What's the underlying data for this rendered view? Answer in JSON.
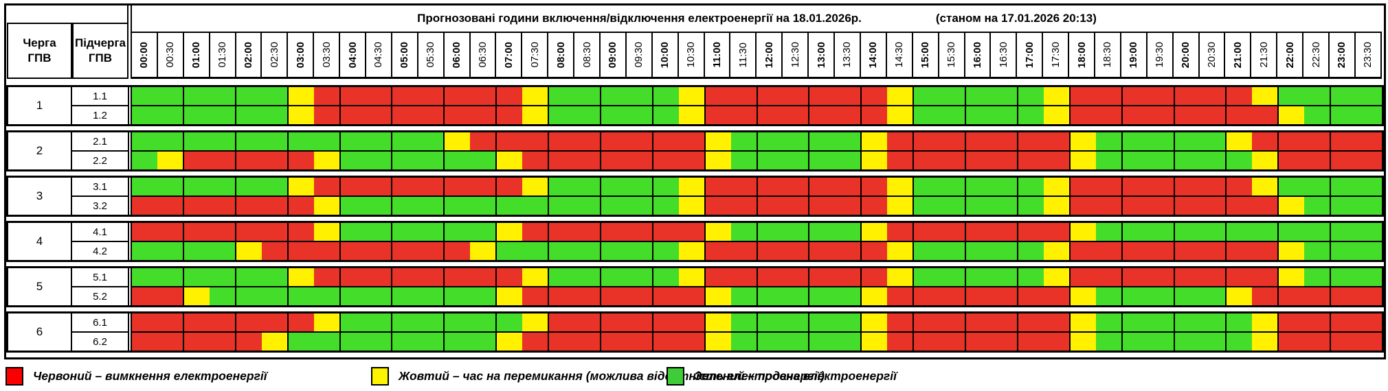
{
  "title": {
    "main": "Прогнозовані години включення/відключення електроенергії на 18.01.2026р.",
    "asof": "(станом на 17.01.2026 20:13)"
  },
  "header": {
    "queue": "Черга\nГПВ",
    "subqueue": "Підчерга\nГПВ"
  },
  "times": [
    "00:00",
    "00:30",
    "01:00",
    "01:30",
    "02:00",
    "02:30",
    "03:00",
    "03:30",
    "04:00",
    "04:30",
    "05:00",
    "05:30",
    "06:00",
    "06:30",
    "07:00",
    "07:30",
    "08:00",
    "08:30",
    "09:00",
    "09:30",
    "10:00",
    "10:30",
    "11:00",
    "11:30",
    "12:00",
    "12:30",
    "13:00",
    "13:30",
    "14:00",
    "14:30",
    "15:00",
    "15:30",
    "16:00",
    "16:30",
    "17:00",
    "17:30",
    "18:00",
    "18:30",
    "19:00",
    "19:30",
    "20:00",
    "20:30",
    "21:00",
    "21:30",
    "22:00",
    "22:30",
    "23:00",
    "23:30"
  ],
  "colors": {
    "R": "#e93228",
    "Y": "#fff100",
    "G": "#44dd2a"
  },
  "status_meaning": {
    "R": "вимкнення",
    "Y": "перемикання",
    "G": "подача"
  },
  "groups": [
    {
      "queue": "1",
      "rows": [
        {
          "label": "1.1",
          "pattern": "GGGGGGYRRRRRRRRYGGGGGYRRRRRRRYGGGGGYRRRRRRRYGGGG"
        },
        {
          "label": "1.2",
          "pattern": "GGGGGGYRRRRRRRRYGGGGGYRRRRRRRYGGGGGYRRRRRRRRYGGG"
        }
      ]
    },
    {
      "queue": "2",
      "rows": [
        {
          "label": "2.1",
          "pattern": "GGGGGGGGGGGGYRRRRRRRRRYGGGGGYRRRRRRRYGGGGGYRRRRR"
        },
        {
          "label": "2.2",
          "pattern": "GYRRRRRYGGGGGGYRRRRRRRYGGGGGYRRRRRRRYGGGGGGYRRRR"
        }
      ]
    },
    {
      "queue": "3",
      "rows": [
        {
          "label": "3.1",
          "pattern": "GGGGGGYRRRRRRRRYGGGGGYRRRRRRRYGGGGGYRRRRRRRYGGGG"
        },
        {
          "label": "3.2",
          "pattern": "RRRRRRRYGGGGGGGGGGGGGYRRRRRRRYGGGGGYRRRRRRRRYGGG"
        }
      ]
    },
    {
      "queue": "4",
      "rows": [
        {
          "label": "4.1",
          "pattern": "RRRRRRRYGGGGGGYRRRRRRRYGGGGGYRRRRRRRYGGGGGGGGGGG"
        },
        {
          "label": "4.2",
          "pattern": "GGGGYRRRRRRRRYGGGGGGGYRRRRRRRYGGGGGYRRRRRRRRYGGG"
        }
      ]
    },
    {
      "queue": "5",
      "rows": [
        {
          "label": "5.1",
          "pattern": "GGGGGGYRRRRRRRRYGGGGGYRRRRRRRYGGGGGYRRRRRRRRYGGG"
        },
        {
          "label": "5.2",
          "pattern": "RRYGGGGGGGGGGGYRRRRRRRYGGGGGYRRRRRRRYGGGGGYRRRRR"
        }
      ]
    },
    {
      "queue": "6",
      "rows": [
        {
          "label": "6.1",
          "pattern": "RRRRRRRYGGGGGGGYRRRRRRYGGGGGYRRRRRRRYGGGGGGYRRRR"
        },
        {
          "label": "6.2",
          "pattern": "RRRRRYGGGGGGGGYRRRRRRRYGGGGGYRRRRRRRYGGGGGGYRRRR"
        }
      ]
    }
  ],
  "legend": [
    {
      "key": "R",
      "swatch": "#fb0000",
      "text": "Червоний – вимкнення електроенергії"
    },
    {
      "key": "Y",
      "swatch": "#fdf300",
      "text": "Жовтий – час на перемикання (можлива відсутність електроенергії)"
    },
    {
      "key": "G",
      "swatch": "#3ecc38",
      "text": "Зелений – подача електроенергії"
    }
  ]
}
